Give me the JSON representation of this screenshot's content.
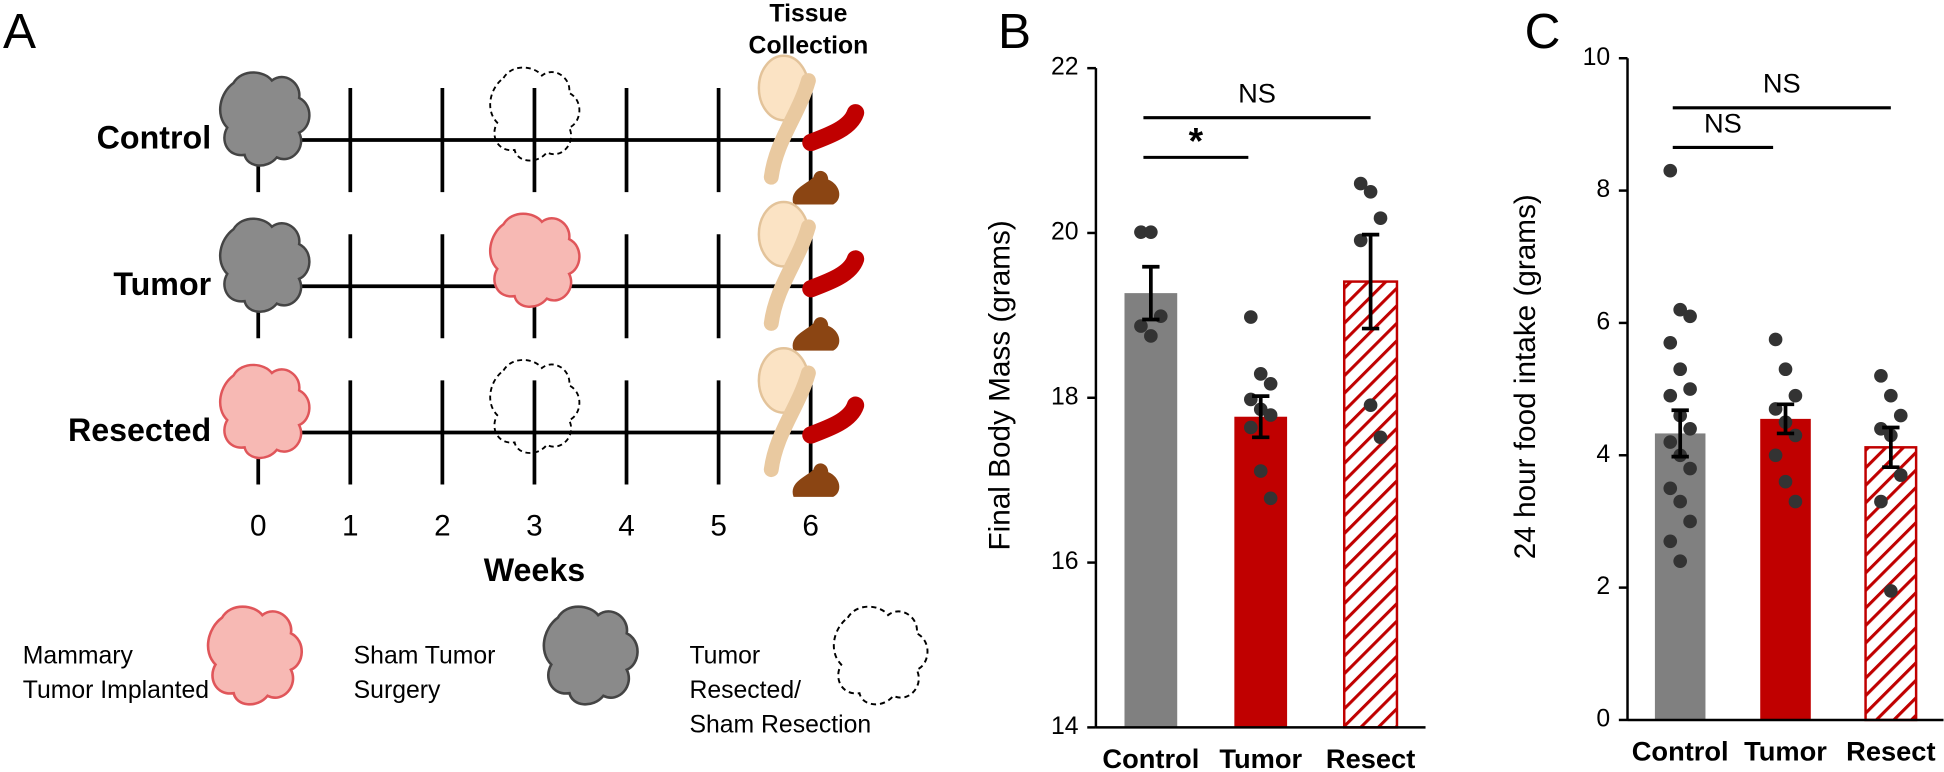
{
  "panel_a": {
    "panel_label": "A",
    "collection_label": [
      "Tissue",
      "Collection"
    ],
    "rows": [
      "Control",
      "Tumor",
      "Resected"
    ],
    "weeks": [
      0,
      1,
      2,
      3,
      4,
      5,
      6
    ],
    "axis_label": "Weeks",
    "legend": [
      [
        "Mammary",
        "Tumor Implanted"
      ],
      [
        "Sham Tumor",
        "Surgery"
      ],
      [
        "Tumor",
        "Resected/",
        "Sham Resection"
      ]
    ]
  },
  "chart_data": [
    {
      "type": "bar",
      "panel_label": "B",
      "y_label": "Final Body Mass (grams)",
      "categories": [
        "Control",
        "Tumor",
        "Resect"
      ],
      "values": [
        19.27,
        17.77,
        19.41
      ],
      "errors": [
        0.32,
        0.25,
        0.57
      ],
      "colors": [
        "#808080",
        "#c00000",
        "#c00000"
      ],
      "hatched": [
        false,
        false,
        true
      ],
      "points": [
        [
          20.01,
          20.01,
          18.99,
          18.87,
          18.75
        ],
        [
          18.98,
          18.29,
          18.17,
          17.98,
          17.86,
          17.79,
          17.64,
          17.11,
          16.78
        ],
        [
          20.6,
          20.5,
          20.18,
          19.91,
          17.91,
          17.52
        ]
      ],
      "annotations": [
        {
          "label": "NS",
          "span": [
            0,
            2
          ]
        },
        {
          "label": "*",
          "span": [
            0,
            1
          ]
        }
      ],
      "ylim": [
        14,
        22
      ],
      "yticks": [
        14,
        16,
        18,
        20,
        22
      ]
    },
    {
      "type": "bar",
      "panel_label": "C",
      "y_label": "24 hour food intake (grams)",
      "categories": [
        "Control",
        "Tumor",
        "Resect"
      ],
      "values": [
        4.33,
        4.55,
        4.12
      ],
      "errors": [
        0.35,
        0.22,
        0.3
      ],
      "colors": [
        "#808080",
        "#c00000",
        "#c00000"
      ],
      "hatched": [
        false,
        false,
        true
      ],
      "points": [
        [
          8.3,
          6.2,
          6.1,
          5.7,
          5.3,
          5.0,
          4.9,
          4.6,
          4.4,
          4.2,
          4.0,
          3.8,
          3.5,
          3.3,
          3.0,
          2.7,
          2.4
        ],
        [
          5.75,
          5.3,
          4.9,
          4.7,
          4.5,
          4.3,
          4.0,
          3.6,
          3.3
        ],
        [
          5.2,
          4.9,
          4.6,
          4.4,
          4.3,
          3.7,
          3.3,
          1.95
        ]
      ],
      "annotations": [
        {
          "label": "NS",
          "span": [
            0,
            2
          ]
        },
        {
          "label": "NS",
          "span": [
            0,
            1
          ]
        }
      ],
      "ylim": [
        0,
        10
      ],
      "yticks": [
        0,
        2,
        4,
        6,
        8,
        10
      ]
    }
  ]
}
